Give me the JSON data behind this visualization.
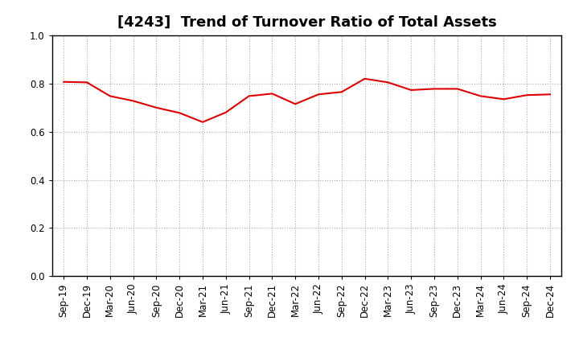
{
  "title": "[4243]  Trend of Turnover Ratio of Total Assets",
  "x_labels": [
    "Sep-19",
    "Dec-19",
    "Mar-20",
    "Jun-20",
    "Sep-20",
    "Dec-20",
    "Mar-21",
    "Jun-21",
    "Sep-21",
    "Dec-21",
    "Mar-22",
    "Jun-22",
    "Sep-22",
    "Dec-22",
    "Mar-23",
    "Jun-23",
    "Sep-23",
    "Dec-23",
    "Mar-24",
    "Jun-24",
    "Sep-24",
    "Dec-24"
  ],
  "values": [
    0.807,
    0.805,
    0.748,
    0.728,
    0.7,
    0.678,
    0.64,
    0.68,
    0.748,
    0.758,
    0.715,
    0.755,
    0.765,
    0.82,
    0.805,
    0.773,
    0.778,
    0.778,
    0.748,
    0.735,
    0.752,
    0.755
  ],
  "line_color": "#dd0000",
  "line_width": 1.5,
  "ylim": [
    0.0,
    1.0
  ],
  "yticks": [
    0.0,
    0.2,
    0.4,
    0.6,
    0.8,
    1.0
  ],
  "grid_color": "#aaaaaa",
  "bg_color": "#ffffff",
  "title_fontsize": 13,
  "tick_fontsize": 8.5,
  "title_color": "#000000",
  "spine_color": "#000000"
}
